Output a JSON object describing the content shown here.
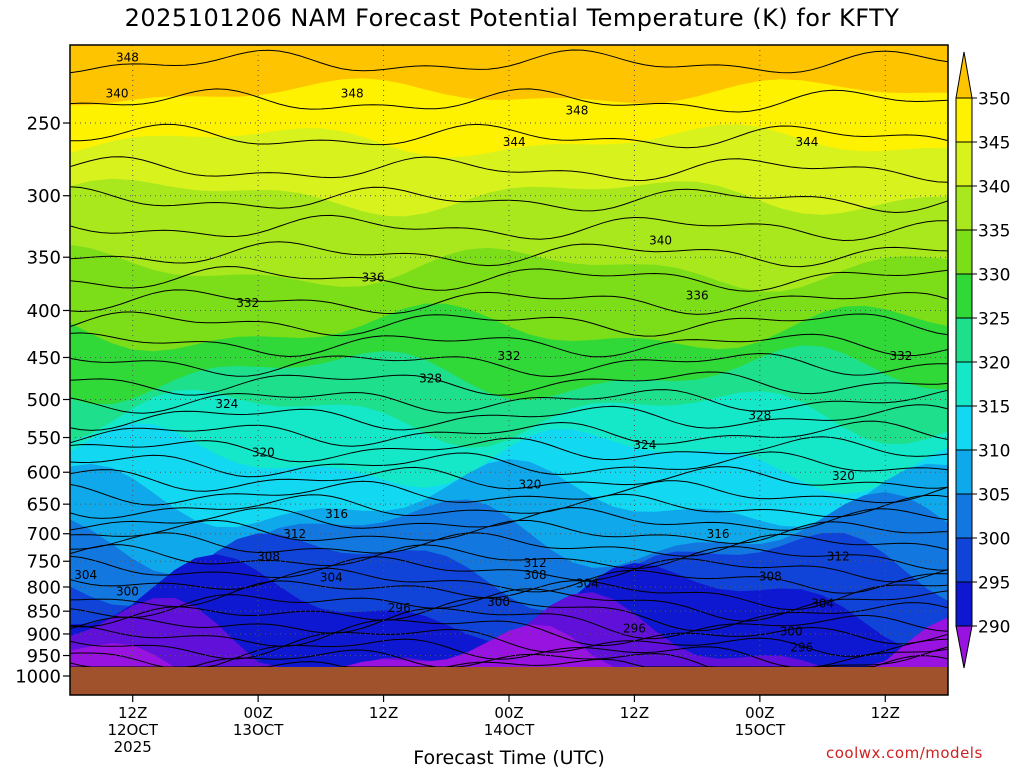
{
  "chart_data": {
    "type": "heatmap",
    "title": "2025101206 NAM Forecast Potential Temperature (K) for KFTY",
    "xlabel": "Forecast Time (UTC)",
    "ylabel": "",
    "credit": "coolwx.com/models",
    "y_axis": {
      "scale": "log-pressure",
      "range_hpa": [
        1000,
        200
      ],
      "ticks": [
        1000,
        950,
        900,
        850,
        800,
        750,
        700,
        650,
        600,
        550,
        500,
        450,
        400,
        350,
        300,
        250
      ]
    },
    "x_axis": {
      "range_hours": [
        6,
        90
      ],
      "ticks": [
        {
          "hour": 12,
          "line1": "12Z",
          "line2": "12OCT",
          "line3": "2025"
        },
        {
          "hour": 24,
          "line1": "00Z",
          "line2": "13OCT",
          "line3": ""
        },
        {
          "hour": 36,
          "line1": "12Z",
          "line2": "",
          "line3": ""
        },
        {
          "hour": 48,
          "line1": "00Z",
          "line2": "14OCT",
          "line3": ""
        },
        {
          "hour": 60,
          "line1": "12Z",
          "line2": "",
          "line3": ""
        },
        {
          "hour": 72,
          "line1": "00Z",
          "line2": "15OCT",
          "line3": ""
        },
        {
          "hour": 84,
          "line1": "12Z",
          "line2": "",
          "line3": ""
        }
      ]
    },
    "grid": true,
    "colorbar": {
      "placement": "right",
      "labels": [
        350,
        345,
        340,
        335,
        330,
        325,
        320,
        315,
        310,
        305,
        300,
        295,
        290
      ],
      "colors": [
        "#ffc400",
        "#fff200",
        "#d8f21e",
        "#a8e81c",
        "#7cde18",
        "#30d838",
        "#1ee08c",
        "#14e8c8",
        "#12d8f2",
        "#0fa8ea",
        "#1278e0",
        "#1044d8",
        "#0e18d0",
        "#6010d8",
        "#9812e0"
      ]
    },
    "ground_color": "#a0522d",
    "contour_labels": [
      {
        "value": "348",
        "hour": 11.5,
        "hpa": 212
      },
      {
        "value": "348",
        "hour": 33,
        "hpa": 232
      },
      {
        "value": "348",
        "hour": 54.5,
        "hpa": 242
      },
      {
        "value": "344",
        "hour": 48.5,
        "hpa": 262
      },
      {
        "value": "344",
        "hour": 76.5,
        "hpa": 262
      },
      {
        "value": "340",
        "hour": 10.5,
        "hpa": 232
      },
      {
        "value": "340",
        "hour": 62.5,
        "hpa": 335
      },
      {
        "value": "336",
        "hour": 35,
        "hpa": 368
      },
      {
        "value": "336",
        "hour": 66,
        "hpa": 385
      },
      {
        "value": "332",
        "hour": 23,
        "hpa": 392
      },
      {
        "value": "332",
        "hour": 48,
        "hpa": 448
      },
      {
        "value": "332",
        "hour": 85.5,
        "hpa": 448
      },
      {
        "value": "328",
        "hour": 40.5,
        "hpa": 474
      },
      {
        "value": "328",
        "hour": 72,
        "hpa": 520
      },
      {
        "value": "324",
        "hour": 21,
        "hpa": 505
      },
      {
        "value": "324",
        "hour": 61,
        "hpa": 560
      },
      {
        "value": "320",
        "hour": 24.5,
        "hpa": 570
      },
      {
        "value": "320",
        "hour": 50,
        "hpa": 618
      },
      {
        "value": "320",
        "hour": 80,
        "hpa": 605
      },
      {
        "value": "316",
        "hour": 31.5,
        "hpa": 665
      },
      {
        "value": "316",
        "hour": 68,
        "hpa": 700
      },
      {
        "value": "312",
        "hour": 27.5,
        "hpa": 700
      },
      {
        "value": "312",
        "hour": 50.5,
        "hpa": 752
      },
      {
        "value": "312",
        "hour": 79.5,
        "hpa": 740
      },
      {
        "value": "308",
        "hour": 25,
        "hpa": 740
      },
      {
        "value": "308",
        "hour": 50.5,
        "hpa": 775
      },
      {
        "value": "308",
        "hour": 73,
        "hpa": 778
      },
      {
        "value": "304",
        "hour": 7.5,
        "hpa": 775
      },
      {
        "value": "304",
        "hour": 31,
        "hpa": 780
      },
      {
        "value": "304",
        "hour": 55.5,
        "hpa": 792
      },
      {
        "value": "304",
        "hour": 78,
        "hpa": 833
      },
      {
        "value": "300",
        "hour": 11.5,
        "hpa": 808
      },
      {
        "value": "300",
        "hour": 47,
        "hpa": 830
      },
      {
        "value": "300",
        "hour": 75,
        "hpa": 893
      },
      {
        "value": "296",
        "hour": 37.5,
        "hpa": 842
      },
      {
        "value": "296",
        "hour": 60,
        "hpa": 887
      },
      {
        "value": "296",
        "hour": 76,
        "hpa": 930
      }
    ]
  }
}
